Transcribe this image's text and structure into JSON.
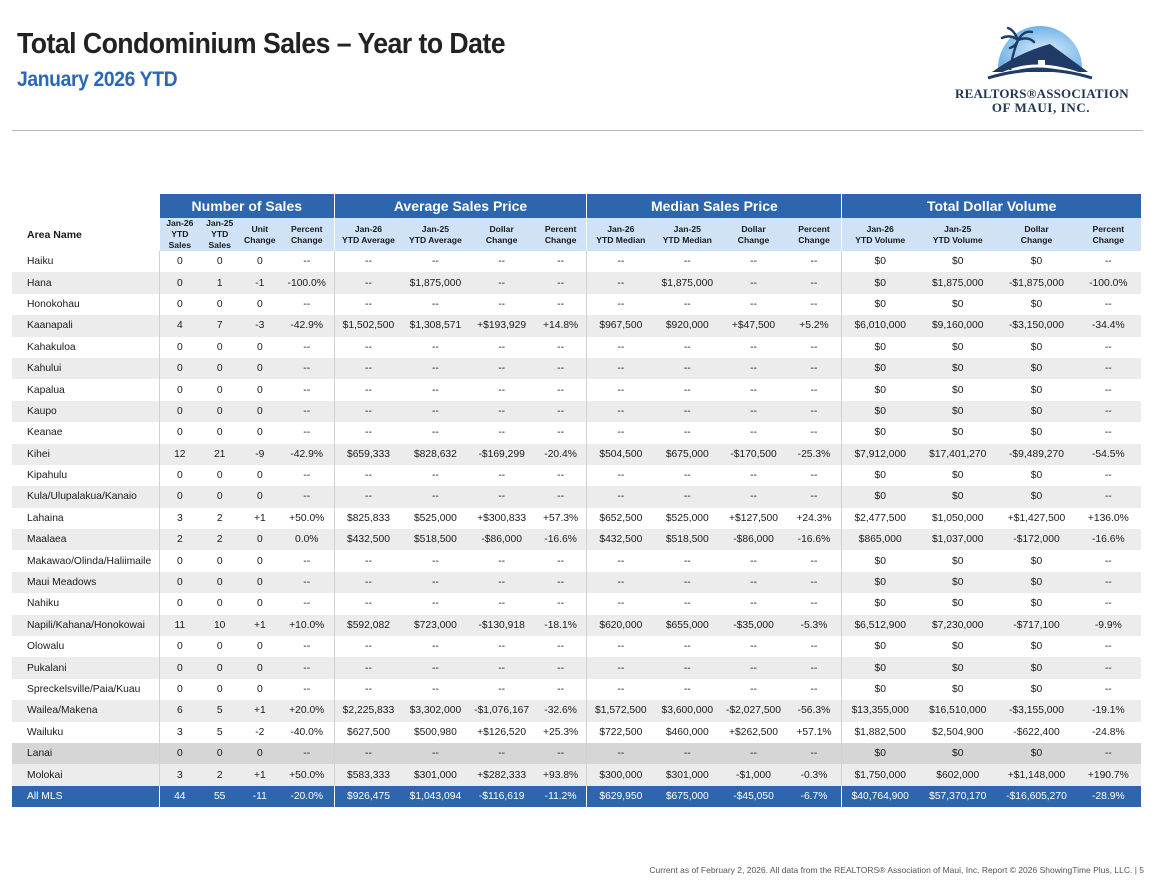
{
  "header": {
    "title": "Total Condominium Sales – Year to Date",
    "subtitle": "January 2026 YTD"
  },
  "logo": {
    "line1": "REALTORS®ASSOCIATION",
    "line2": "OF MAUI, INC.",
    "colors": {
      "sky": "#6fb3e8",
      "roof": "#1f3b66",
      "palm": "#1f3b66"
    }
  },
  "table": {
    "area_header": "Area Name",
    "groups": [
      "Number of Sales",
      "Average Sales Price",
      "Median Sales Price",
      "Total Dollar Volume"
    ],
    "subheaders": [
      "Jan-26\nYTD\nSales",
      "Jan-25\nYTD\nSales",
      "Unit\nChange",
      "Percent\nChange",
      "Jan-26\nYTD Average",
      "Jan-25\nYTD Average",
      "Dollar\nChange",
      "Percent\nChange",
      "Jan-26\nYTD Median",
      "Jan-25\nYTD Median",
      "Dollar\nChange",
      "Percent\nChange",
      "Jan-26\nYTD Volume",
      "Jan-25\nYTD Volume",
      "Dollar\nChange",
      "Percent\nChange"
    ],
    "rows": [
      {
        "area": "Haiku",
        "cells": [
          "0",
          "0",
          "0",
          "--",
          "--",
          "--",
          "--",
          "--",
          "--",
          "--",
          "--",
          "--",
          "$0",
          "$0",
          "$0",
          "--"
        ]
      },
      {
        "area": "Hana",
        "cells": [
          "0",
          "1",
          "-1",
          "-100.0%",
          "--",
          "$1,875,000",
          "--",
          "--",
          "--",
          "$1,875,000",
          "--",
          "--",
          "$0",
          "$1,875,000",
          "-$1,875,000",
          "-100.0%"
        ]
      },
      {
        "area": "Honokohau",
        "cells": [
          "0",
          "0",
          "0",
          "--",
          "--",
          "--",
          "--",
          "--",
          "--",
          "--",
          "--",
          "--",
          "$0",
          "$0",
          "$0",
          "--"
        ]
      },
      {
        "area": "Kaanapali",
        "cells": [
          "4",
          "7",
          "-3",
          "-42.9%",
          "$1,502,500",
          "$1,308,571",
          "+$193,929",
          "+14.8%",
          "$967,500",
          "$920,000",
          "+$47,500",
          "+5.2%",
          "$6,010,000",
          "$9,160,000",
          "-$3,150,000",
          "-34.4%"
        ]
      },
      {
        "area": "Kahakuloa",
        "cells": [
          "0",
          "0",
          "0",
          "--",
          "--",
          "--",
          "--",
          "--",
          "--",
          "--",
          "--",
          "--",
          "$0",
          "$0",
          "$0",
          "--"
        ]
      },
      {
        "area": "Kahului",
        "cells": [
          "0",
          "0",
          "0",
          "--",
          "--",
          "--",
          "--",
          "--",
          "--",
          "--",
          "--",
          "--",
          "$0",
          "$0",
          "$0",
          "--"
        ]
      },
      {
        "area": "Kapalua",
        "cells": [
          "0",
          "0",
          "0",
          "--",
          "--",
          "--",
          "--",
          "--",
          "--",
          "--",
          "--",
          "--",
          "$0",
          "$0",
          "$0",
          "--"
        ]
      },
      {
        "area": "Kaupo",
        "cells": [
          "0",
          "0",
          "0",
          "--",
          "--",
          "--",
          "--",
          "--",
          "--",
          "--",
          "--",
          "--",
          "$0",
          "$0",
          "$0",
          "--"
        ]
      },
      {
        "area": "Keanae",
        "cells": [
          "0",
          "0",
          "0",
          "--",
          "--",
          "--",
          "--",
          "--",
          "--",
          "--",
          "--",
          "--",
          "$0",
          "$0",
          "$0",
          "--"
        ]
      },
      {
        "area": "Kihei",
        "cells": [
          "12",
          "21",
          "-9",
          "-42.9%",
          "$659,333",
          "$828,632",
          "-$169,299",
          "-20.4%",
          "$504,500",
          "$675,000",
          "-$170,500",
          "-25.3%",
          "$7,912,000",
          "$17,401,270",
          "-$9,489,270",
          "-54.5%"
        ]
      },
      {
        "area": "Kipahulu",
        "cells": [
          "0",
          "0",
          "0",
          "--",
          "--",
          "--",
          "--",
          "--",
          "--",
          "--",
          "--",
          "--",
          "$0",
          "$0",
          "$0",
          "--"
        ]
      },
      {
        "area": "Kula/Ulupalakua/Kanaio",
        "cells": [
          "0",
          "0",
          "0",
          "--",
          "--",
          "--",
          "--",
          "--",
          "--",
          "--",
          "--",
          "--",
          "$0",
          "$0",
          "$0",
          "--"
        ]
      },
      {
        "area": "Lahaina",
        "cells": [
          "3",
          "2",
          "+1",
          "+50.0%",
          "$825,833",
          "$525,000",
          "+$300,833",
          "+57.3%",
          "$652,500",
          "$525,000",
          "+$127,500",
          "+24.3%",
          "$2,477,500",
          "$1,050,000",
          "+$1,427,500",
          "+136.0%"
        ]
      },
      {
        "area": "Maalaea",
        "cells": [
          "2",
          "2",
          "0",
          "0.0%",
          "$432,500",
          "$518,500",
          "-$86,000",
          "-16.6%",
          "$432,500",
          "$518,500",
          "-$86,000",
          "-16.6%",
          "$865,000",
          "$1,037,000",
          "-$172,000",
          "-16.6%"
        ]
      },
      {
        "area": "Makawao/Olinda/Haliimaile",
        "cells": [
          "0",
          "0",
          "0",
          "--",
          "--",
          "--",
          "--",
          "--",
          "--",
          "--",
          "--",
          "--",
          "$0",
          "$0",
          "$0",
          "--"
        ]
      },
      {
        "area": "Maui Meadows",
        "cells": [
          "0",
          "0",
          "0",
          "--",
          "--",
          "--",
          "--",
          "--",
          "--",
          "--",
          "--",
          "--",
          "$0",
          "$0",
          "$0",
          "--"
        ]
      },
      {
        "area": "Nahiku",
        "cells": [
          "0",
          "0",
          "0",
          "--",
          "--",
          "--",
          "--",
          "--",
          "--",
          "--",
          "--",
          "--",
          "$0",
          "$0",
          "$0",
          "--"
        ]
      },
      {
        "area": "Napili/Kahana/Honokowai",
        "cells": [
          "11",
          "10",
          "+1",
          "+10.0%",
          "$592,082",
          "$723,000",
          "-$130,918",
          "-18.1%",
          "$620,000",
          "$655,000",
          "-$35,000",
          "-5.3%",
          "$6,512,900",
          "$7,230,000",
          "-$717,100",
          "-9.9%"
        ]
      },
      {
        "area": "Olowalu",
        "cells": [
          "0",
          "0",
          "0",
          "--",
          "--",
          "--",
          "--",
          "--",
          "--",
          "--",
          "--",
          "--",
          "$0",
          "$0",
          "$0",
          "--"
        ]
      },
      {
        "area": "Pukalani",
        "cells": [
          "0",
          "0",
          "0",
          "--",
          "--",
          "--",
          "--",
          "--",
          "--",
          "--",
          "--",
          "--",
          "$0",
          "$0",
          "$0",
          "--"
        ]
      },
      {
        "area": "Spreckelsville/Paia/Kuau",
        "cells": [
          "0",
          "0",
          "0",
          "--",
          "--",
          "--",
          "--",
          "--",
          "--",
          "--",
          "--",
          "--",
          "$0",
          "$0",
          "$0",
          "--"
        ]
      },
      {
        "area": "Wailea/Makena",
        "cells": [
          "6",
          "5",
          "+1",
          "+20.0%",
          "$2,225,833",
          "$3,302,000",
          "-$1,076,167",
          "-32.6%",
          "$1,572,500",
          "$3,600,000",
          "-$2,027,500",
          "-56.3%",
          "$13,355,000",
          "$16,510,000",
          "-$3,155,000",
          "-19.1%"
        ]
      },
      {
        "area": "Wailuku",
        "cells": [
          "3",
          "5",
          "-2",
          "-40.0%",
          "$627,500",
          "$500,980",
          "+$126,520",
          "+25.3%",
          "$722,500",
          "$460,000",
          "+$262,500",
          "+57.1%",
          "$1,882,500",
          "$2,504,900",
          "-$622,400",
          "-24.8%"
        ]
      },
      {
        "area": "Lanai",
        "cells": [
          "0",
          "0",
          "0",
          "--",
          "--",
          "--",
          "--",
          "--",
          "--",
          "--",
          "--",
          "--",
          "$0",
          "$0",
          "$0",
          "--"
        ]
      },
      {
        "area": "Molokai",
        "cells": [
          "3",
          "2",
          "+1",
          "+50.0%",
          "$583,333",
          "$301,000",
          "+$282,333",
          "+93.8%",
          "$300,000",
          "$301,000",
          "-$1,000",
          "-0.3%",
          "$1,750,000",
          "$602,000",
          "+$1,148,000",
          "+190.7%"
        ]
      }
    ],
    "total": {
      "area": "All MLS",
      "cells": [
        "44",
        "55",
        "-11",
        "-20.0%",
        "$926,475",
        "$1,043,094",
        "-$116,619",
        "-11.2%",
        "$629,950",
        "$675,000",
        "-$45,050",
        "-6.7%",
        "$40,764,900",
        "$57,370,170",
        "-$16,605,270",
        "-28.9%"
      ]
    }
  },
  "footer": {
    "text": "Current as of February 2, 2026. All data from the REALTORS® Association of Maui, Inc. Report © 2026 ShowingTime Plus, LLC.  |  5"
  }
}
